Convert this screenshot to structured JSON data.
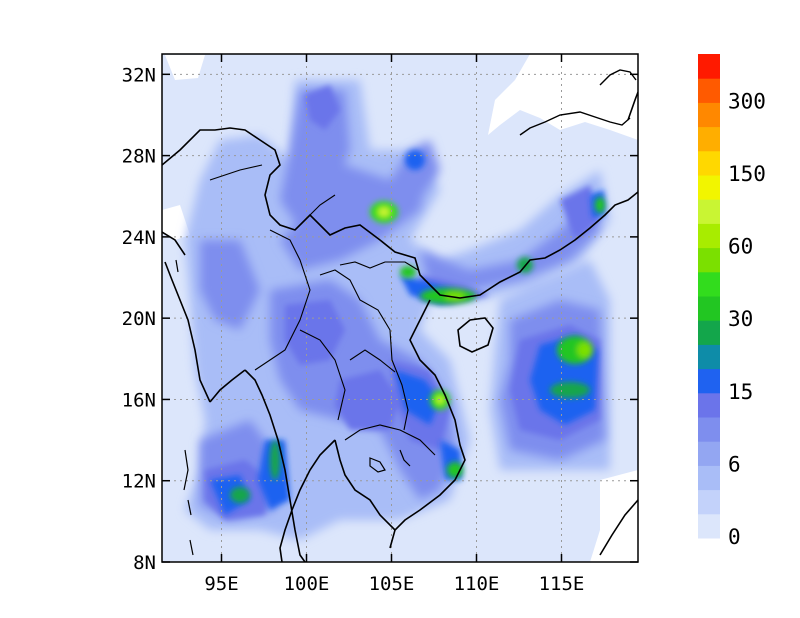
{
  "chart_data": {
    "type": "heatmap",
    "title": "",
    "xlabel": "",
    "ylabel": "",
    "x_ticks": [
      "95E",
      "100E",
      "105E",
      "110E",
      "115E"
    ],
    "x_tick_values": [
      95,
      100,
      105,
      110,
      115
    ],
    "y_ticks": [
      "8N",
      "12N",
      "16N",
      "20N",
      "24N",
      "28N",
      "32N"
    ],
    "y_tick_values": [
      8,
      12,
      16,
      20,
      24,
      28,
      32
    ],
    "xlim": [
      91.5,
      119.5
    ],
    "ylim": [
      8,
      33
    ],
    "grid": true,
    "colorbar": {
      "levels": [
        "0",
        "",
        "6",
        "",
        "",
        "15",
        "",
        "",
        "30",
        "",
        "",
        "60",
        "",
        "",
        "150",
        "",
        "",
        "300"
      ],
      "colors": [
        "#dce6fb",
        "#c3d2fa",
        "#a9bdf7",
        "#93a6f2",
        "#7e8eee",
        "#6b74ea",
        "#1f62f0",
        "#0e8ca8",
        "#13a64b",
        "#22c622",
        "#32dc1d",
        "#7be000",
        "#a8ec00",
        "#c9f533",
        "#f2f500",
        "#ffd800",
        "#ffae00",
        "#ff8800",
        "#ff5a00",
        "#ff1a00"
      ],
      "tick_labels": [
        "0",
        "6",
        "15",
        "30",
        "60",
        "150",
        "300"
      ]
    },
    "hotspots": [
      {
        "lon": 105,
        "lat": 25.4,
        "value": 60
      },
      {
        "lon": 108.5,
        "lat": 21.2,
        "value": 60
      },
      {
        "lon": 107.8,
        "lat": 16.0,
        "value": 60
      },
      {
        "lon": 109.4,
        "lat": 12.4,
        "value": 30
      },
      {
        "lon": 115.8,
        "lat": 18.2,
        "value": 30
      },
      {
        "lon": 113.9,
        "lat": 22.8,
        "value": 30
      },
      {
        "lon": 98.0,
        "lat": 12.8,
        "value": 30
      },
      {
        "lon": 100.5,
        "lat": 31.5,
        "value": 15
      },
      {
        "lon": 117.0,
        "lat": 16.5,
        "value": 30
      }
    ]
  }
}
